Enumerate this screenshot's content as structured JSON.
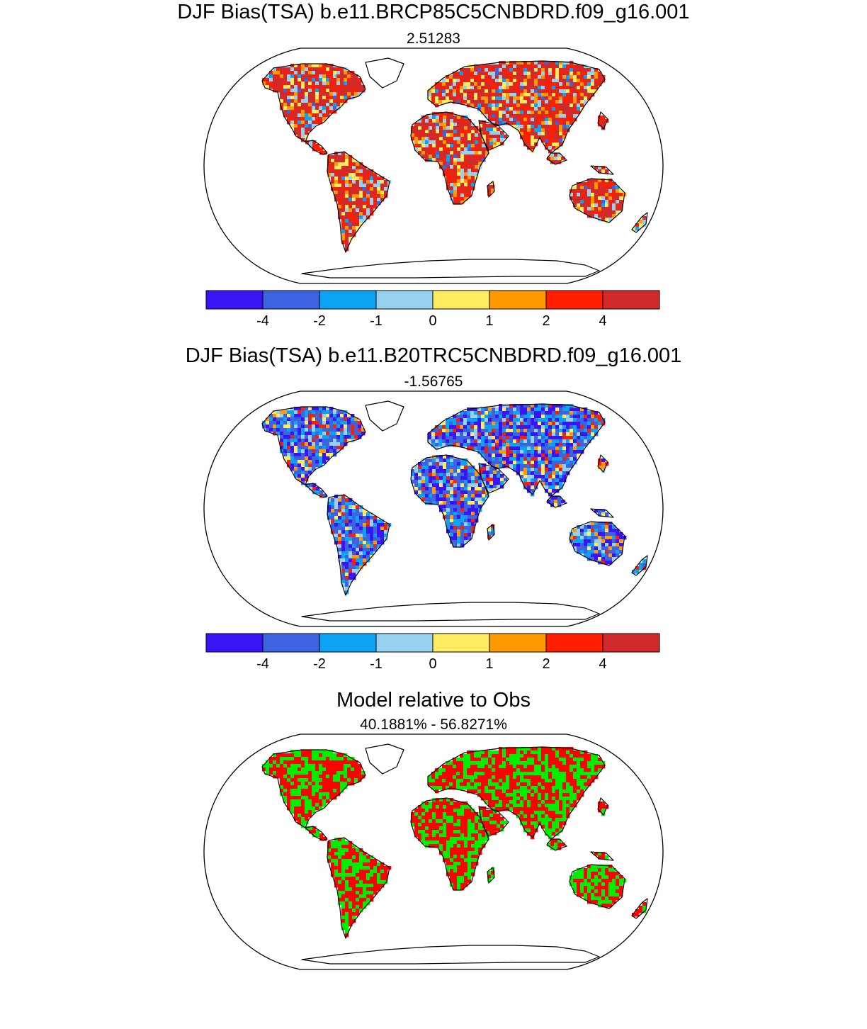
{
  "panels": [
    {
      "title": "DJF Bias(TSA) b.e11.BRCP85C5CNBDRD.f09_g16.001",
      "subtitle": "2.51283",
      "scheme": "bias",
      "pattern": "warm"
    },
    {
      "title": "DJF Bias(TSA) b.e11.B20TRC5CNBDRD.f09_g16.001",
      "subtitle": "-1.56765",
      "scheme": "bias",
      "pattern": "cool"
    },
    {
      "title": "Model relative to Obs",
      "subtitle": "40.1881% - 56.8271%",
      "scheme": "binary",
      "pattern": "compare"
    }
  ],
  "colorbar": {
    "colors": [
      "#3b14f5",
      "#3c63e0",
      "#0da3f5",
      "#96d2f0",
      "#ffeb60",
      "#ff9a00",
      "#ff1e00",
      "#d22a2a"
    ],
    "labels": [
      "-4",
      "-2",
      "-1",
      "0",
      "1",
      "2",
      "4"
    ]
  },
  "binary_colors": [
    "#ff0000",
    "#00ee00"
  ]
}
